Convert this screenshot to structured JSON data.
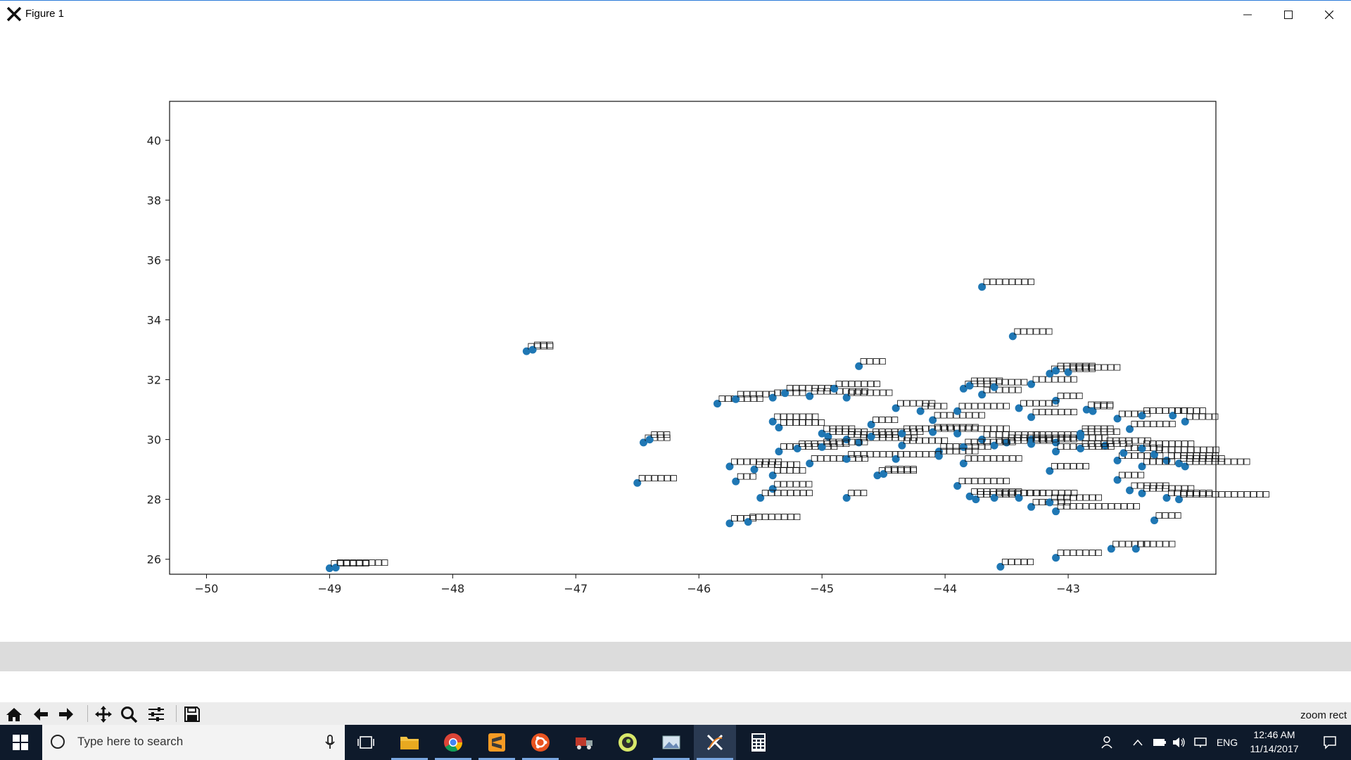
{
  "window": {
    "title": "Figure 1"
  },
  "chart_data": {
    "type": "scatter",
    "title": "",
    "xlabel": "",
    "ylabel": "",
    "xlim": [
      -50.3,
      -41.8
    ],
    "ylim": [
      25.5,
      41.3
    ],
    "xticks": [
      -50,
      -49,
      -48,
      -47,
      -46,
      -45,
      -44,
      -43
    ],
    "yticks": [
      26,
      28,
      30,
      32,
      34,
      36,
      38,
      40
    ],
    "grid": false,
    "point_color": "#1f77b4",
    "point_label_glyph": "□",
    "points": [
      [
        -49.0,
        25.7,
        6
      ],
      [
        -48.95,
        25.72,
        8
      ],
      [
        -47.4,
        32.95,
        4
      ],
      [
        -47.35,
        33.0,
        3
      ],
      [
        -46.45,
        29.9,
        4
      ],
      [
        -46.4,
        30.0,
        3
      ],
      [
        -46.5,
        28.55,
        6
      ],
      [
        -45.85,
        31.2,
        7
      ],
      [
        -45.7,
        31.35,
        6
      ],
      [
        -45.4,
        31.4,
        5
      ],
      [
        -45.3,
        31.55,
        8
      ],
      [
        -45.1,
        31.45,
        9
      ],
      [
        -44.9,
        31.7,
        7
      ],
      [
        -44.8,
        31.4,
        7
      ],
      [
        -44.7,
        32.45,
        4
      ],
      [
        -45.4,
        30.6,
        7
      ],
      [
        -45.35,
        30.4,
        7
      ],
      [
        -45.0,
        30.2,
        5
      ],
      [
        -44.95,
        30.1,
        6
      ],
      [
        -44.6,
        30.5,
        4
      ],
      [
        -44.8,
        30.0,
        8
      ],
      [
        -44.7,
        29.9,
        9
      ],
      [
        -45.75,
        29.1,
        8
      ],
      [
        -45.55,
        29.0,
        7
      ],
      [
        -45.35,
        29.6,
        9
      ],
      [
        -45.2,
        29.7,
        8
      ],
      [
        -45.0,
        29.75,
        7
      ],
      [
        -45.1,
        29.2,
        9
      ],
      [
        -44.8,
        29.35,
        8
      ],
      [
        -45.4,
        28.8,
        5
      ],
      [
        -45.4,
        28.35,
        6
      ],
      [
        -45.7,
        28.6,
        3
      ],
      [
        -45.5,
        28.05,
        8
      ],
      [
        -44.8,
        28.05,
        3
      ],
      [
        -44.55,
        28.8,
        6
      ],
      [
        -44.5,
        28.85,
        5
      ],
      [
        -45.75,
        27.2,
        4
      ],
      [
        -45.6,
        27.25,
        8
      ],
      [
        -44.4,
        31.05,
        6
      ],
      [
        -44.2,
        30.95,
        4
      ],
      [
        -44.1,
        30.65,
        8
      ],
      [
        -43.9,
        30.95,
        8
      ],
      [
        -43.85,
        31.7,
        5
      ],
      [
        -43.8,
        31.8,
        5
      ],
      [
        -43.7,
        31.5,
        6
      ],
      [
        -43.6,
        31.75,
        5
      ],
      [
        -43.3,
        31.85,
        7
      ],
      [
        -43.1,
        31.3,
        4
      ],
      [
        -43.15,
        32.2,
        7
      ],
      [
        -43.1,
        32.3,
        6
      ],
      [
        -43.0,
        32.25,
        8
      ],
      [
        -43.4,
        31.05,
        6
      ],
      [
        -43.3,
        30.75,
        7
      ],
      [
        -42.85,
        31.0,
        4
      ],
      [
        -42.8,
        30.95,
        3
      ],
      [
        -43.7,
        35.1,
        8
      ],
      [
        -43.45,
        33.45,
        6
      ],
      [
        -44.6,
        30.1,
        8
      ],
      [
        -44.35,
        30.2,
        9
      ],
      [
        -44.1,
        30.25,
        7
      ],
      [
        -43.9,
        30.2,
        8
      ],
      [
        -43.7,
        30.0,
        9
      ],
      [
        -43.5,
        29.9,
        9
      ],
      [
        -43.3,
        30.0,
        7
      ],
      [
        -43.1,
        29.9,
        8
      ],
      [
        -42.9,
        30.1,
        6
      ],
      [
        -42.7,
        29.8,
        7
      ],
      [
        -44.35,
        29.8,
        7
      ],
      [
        -44.05,
        29.6,
        8
      ],
      [
        -43.85,
        29.75,
        8
      ],
      [
        -43.6,
        29.8,
        9
      ],
      [
        -43.3,
        29.85,
        7
      ],
      [
        -43.1,
        29.6,
        9
      ],
      [
        -42.9,
        29.7,
        8
      ],
      [
        -44.4,
        29.35,
        7
      ],
      [
        -44.05,
        29.45,
        6
      ],
      [
        -43.85,
        29.2,
        9
      ],
      [
        -43.15,
        28.95,
        6
      ],
      [
        -42.6,
        29.3,
        7
      ],
      [
        -42.55,
        29.55,
        6
      ],
      [
        -42.4,
        29.7,
        8
      ],
      [
        -42.3,
        29.5,
        10
      ],
      [
        -42.2,
        29.3,
        8
      ],
      [
        -42.1,
        29.2,
        7
      ],
      [
        -42.05,
        29.1,
        10
      ],
      [
        -42.4,
        29.1,
        5
      ],
      [
        -42.6,
        28.65,
        4
      ],
      [
        -42.5,
        28.3,
        6
      ],
      [
        -42.4,
        28.2,
        8
      ],
      [
        -42.2,
        28.05,
        7
      ],
      [
        -42.1,
        28.0,
        14
      ],
      [
        -42.6,
        30.7,
        5
      ],
      [
        -42.5,
        30.35,
        7
      ],
      [
        -42.4,
        30.8,
        7
      ],
      [
        -42.15,
        30.8,
        5
      ],
      [
        -42.05,
        30.6,
        5
      ],
      [
        -43.9,
        28.45,
        8
      ],
      [
        -43.8,
        28.1,
        8
      ],
      [
        -43.75,
        28.0,
        7
      ],
      [
        -43.6,
        28.05,
        8
      ],
      [
        -43.4,
        28.05,
        9
      ],
      [
        -43.3,
        27.75,
        6
      ],
      [
        -43.15,
        27.9,
        8
      ],
      [
        -43.1,
        27.6,
        13
      ],
      [
        -42.3,
        27.3,
        4
      ],
      [
        -43.55,
        25.75,
        5
      ],
      [
        -43.1,
        26.05,
        7
      ],
      [
        -42.65,
        26.35,
        6
      ],
      [
        -42.45,
        26.35,
        6
      ],
      [
        -42.9,
        30.2,
        5
      ]
    ]
  },
  "toolbar": {
    "buttons": [
      "home-icon",
      "back-icon",
      "forward-icon",
      "pan-icon",
      "zoom-icon",
      "configure-icon",
      "save-icon"
    ],
    "status": "zoom rect"
  },
  "taskbar": {
    "search_placeholder": "Type here to search",
    "language": "ENG",
    "time": "12:46 AM",
    "date": "11/14/2017",
    "apps": [
      "file-explorer-icon",
      "chrome-icon",
      "sublime-icon",
      "ubuntu-icon",
      "truck-icon",
      "app-icon",
      "photos-icon",
      "xming-icon",
      "calculator-icon"
    ]
  }
}
